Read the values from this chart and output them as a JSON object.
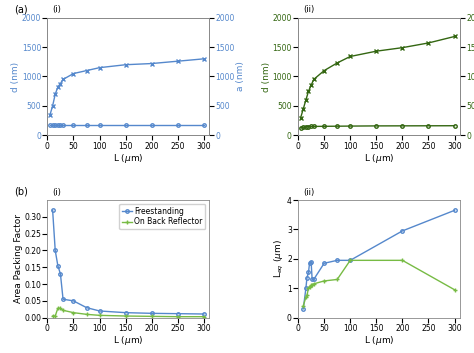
{
  "L_ai": [
    5,
    10,
    15,
    20,
    25,
    30,
    50,
    75,
    100,
    150,
    200,
    250,
    300
  ],
  "d_ai": [
    350,
    500,
    700,
    820,
    880,
    950,
    1050,
    1100,
    1150,
    1200,
    1220,
    1260,
    1300
  ],
  "a_ai": [
    170,
    170,
    170,
    170,
    170,
    170,
    170,
    170,
    170,
    170,
    170,
    170,
    170
  ],
  "L_aii": [
    5,
    10,
    15,
    20,
    25,
    30,
    50,
    75,
    100,
    150,
    200,
    250,
    300
  ],
  "d_aii": [
    300,
    450,
    600,
    750,
    850,
    950,
    1100,
    1230,
    1340,
    1430,
    1490,
    1570,
    1680
  ],
  "a_aii": [
    130,
    138,
    144,
    148,
    150,
    151,
    153,
    155,
    157,
    160,
    161,
    162,
    163
  ],
  "L_bi": [
    10,
    15,
    20,
    25,
    30,
    50,
    75,
    100,
    150,
    200,
    250,
    300
  ],
  "apf_free": [
    0.32,
    0.2,
    0.155,
    0.13,
    0.055,
    0.05,
    0.03,
    0.02,
    0.015,
    0.013,
    0.012,
    0.011
  ],
  "apf_br": [
    0.005,
    0.005,
    0.028,
    0.028,
    0.022,
    0.015,
    0.01,
    0.007,
    0.005,
    0.004,
    0.003,
    0.003
  ],
  "L_bii": [
    10,
    15,
    17,
    20,
    22,
    25,
    27,
    30,
    50,
    75,
    100,
    200,
    300
  ],
  "leq_free": [
    0.3,
    1.0,
    1.35,
    1.55,
    1.85,
    1.9,
    1.3,
    1.3,
    1.85,
    1.95,
    1.95,
    2.95,
    3.65
  ],
  "leq_br": [
    0.4,
    0.7,
    0.76,
    1.0,
    1.05,
    1.1,
    1.12,
    1.15,
    1.25,
    1.3,
    1.95,
    1.95,
    0.95
  ],
  "blue": "#5588cc",
  "green": "#77bb44",
  "dk_green": "#336611",
  "fs": 6.5,
  "ts": 5.5,
  "ls": 5.5,
  "pls": 7
}
